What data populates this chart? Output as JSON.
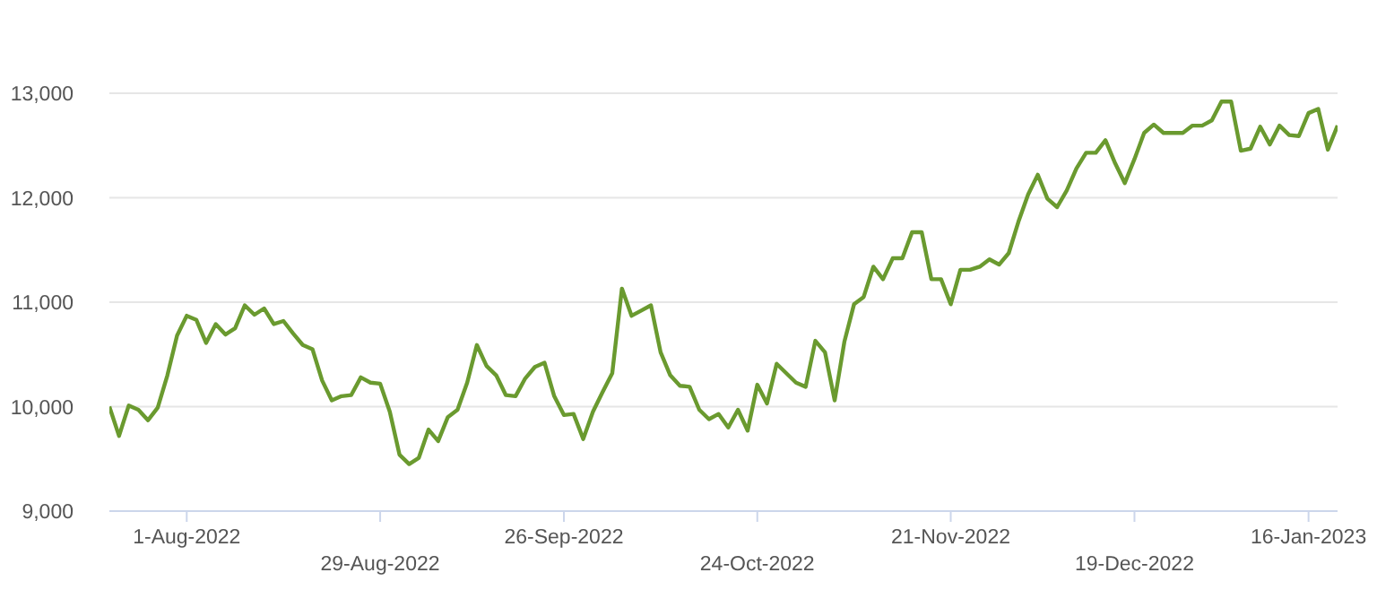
{
  "chart_data": {
    "type": "line",
    "categories": [
      null,
      null,
      null,
      null,
      null,
      null,
      null,
      null,
      "1-Aug-2022",
      null,
      null,
      null,
      null,
      null,
      null,
      null,
      null,
      null,
      null,
      null,
      null,
      null,
      null,
      null,
      null,
      null,
      null,
      null,
      "29-Aug-2022",
      null,
      null,
      null,
      null,
      null,
      null,
      null,
      null,
      null,
      null,
      null,
      null,
      null,
      null,
      null,
      null,
      null,
      null,
      "26-Sep-2022",
      null,
      null,
      null,
      null,
      null,
      null,
      null,
      null,
      null,
      null,
      null,
      null,
      null,
      null,
      null,
      null,
      null,
      null,
      null,
      "24-Oct-2022",
      null,
      null,
      null,
      null,
      null,
      null,
      null,
      null,
      null,
      null,
      null,
      null,
      null,
      null,
      null,
      null,
      null,
      null,
      null,
      "21-Nov-2022",
      null,
      null,
      null,
      null,
      null,
      null,
      null,
      null,
      null,
      null,
      null,
      null,
      null,
      null,
      null,
      null,
      null,
      null,
      "19-Dec-2022",
      null,
      null,
      null,
      null,
      null,
      null,
      null,
      null,
      null,
      null,
      null,
      null,
      null,
      null,
      null,
      null,
      null,
      "16-Jan-2023",
      null,
      null,
      null
    ],
    "values": [
      10000,
      9720,
      10010,
      9970,
      9870,
      9990,
      10300,
      10680,
      10870,
      10830,
      10610,
      10790,
      10690,
      10750,
      10970,
      10880,
      10940,
      10790,
      10820,
      10700,
      10590,
      10550,
      10250,
      10060,
      10100,
      10110,
      10280,
      10230,
      10220,
      9950,
      9540,
      9450,
      9510,
      9780,
      9670,
      9900,
      9970,
      10230,
      10590,
      10390,
      10300,
      10110,
      10100,
      10270,
      10380,
      10420,
      10100,
      9920,
      9930,
      9690,
      9950,
      10140,
      10320,
      11130,
      10870,
      10920,
      10970,
      10520,
      10300,
      10200,
      10190,
      9970,
      9880,
      9930,
      9800,
      9970,
      9770,
      10210,
      10030,
      10410,
      10320,
      10230,
      10190,
      10630,
      10520,
      10060,
      10620,
      10980,
      11050,
      11340,
      11220,
      11420,
      11420,
      11670,
      11670,
      11220,
      11220,
      10980,
      11310,
      11310,
      11340,
      11410,
      11360,
      11470,
      11770,
      12030,
      12220,
      11990,
      11910,
      12070,
      12280,
      12430,
      12430,
      12550,
      12330,
      12140,
      12370,
      12620,
      12700,
      12620,
      12620,
      12620,
      12690,
      12690,
      12740,
      12920,
      12920,
      12450,
      12470,
      12680,
      12510,
      12690,
      12600,
      12590,
      12810,
      12850,
      12460,
      12690
    ],
    "color": "#6a9a2f",
    "ylim": [
      9000,
      13000
    ],
    "yticks": [
      {
        "value": 9000,
        "label": "9,000"
      },
      {
        "value": 10000,
        "label": "10,000"
      },
      {
        "value": 11000,
        "label": "11,000"
      },
      {
        "value": 12000,
        "label": "12,000"
      },
      {
        "value": 13000,
        "label": "13,000"
      }
    ],
    "grid": "y",
    "marker": "none",
    "line_style": "solid"
  }
}
